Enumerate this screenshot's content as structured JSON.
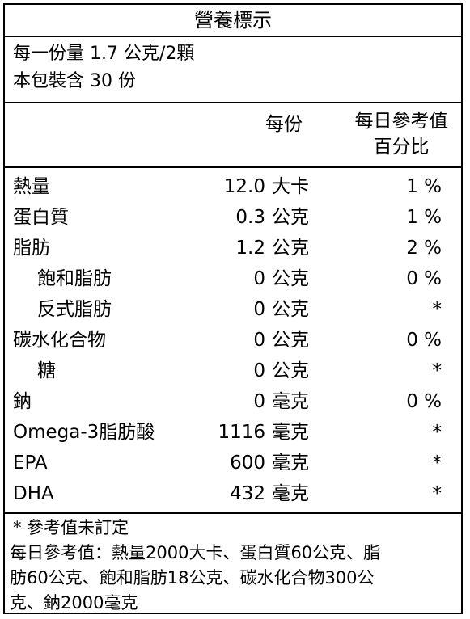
{
  "title": "營養標示",
  "serving": {
    "line1": "每一份量 1.7 公克/2顆",
    "line2": "本包裝含 30 份"
  },
  "header": {
    "per_serving": "每份",
    "daily_value_line1": "每日參考值",
    "daily_value_line2": "百分比"
  },
  "rows": [
    {
      "name": "熱量",
      "amount": "12.0",
      "unit": "大卡",
      "percent": "1 %",
      "sub": false
    },
    {
      "name": "蛋白質",
      "amount": "0.3",
      "unit": "公克",
      "percent": "1 %",
      "sub": false
    },
    {
      "name": "脂肪",
      "amount": "1.2",
      "unit": "公克",
      "percent": "2 %",
      "sub": false
    },
    {
      "name": "飽和脂肪",
      "amount": "0",
      "unit": "公克",
      "percent": "0 %",
      "sub": true
    },
    {
      "name": "反式脂肪",
      "amount": "0",
      "unit": "公克",
      "percent": "*",
      "sub": true
    },
    {
      "name": "碳水化合物",
      "amount": "0",
      "unit": "公克",
      "percent": "0 %",
      "sub": false
    },
    {
      "name": "糖",
      "amount": "0",
      "unit": "公克",
      "percent": "*",
      "sub": true
    },
    {
      "name": "鈉",
      "amount": "0",
      "unit": "毫克",
      "percent": "0 %",
      "sub": false
    },
    {
      "name": "Omega-3脂肪酸",
      "amount": "1116",
      "unit": "毫克",
      "percent": "*",
      "sub": false
    },
    {
      "name": "EPA",
      "amount": "600",
      "unit": "毫克",
      "percent": "*",
      "sub": false
    },
    {
      "name": "DHA",
      "amount": "432",
      "unit": "毫克",
      "percent": "*",
      "sub": false
    }
  ],
  "footer": {
    "note": "* 參考值未訂定",
    "line1": "每日參考值：熱量2000大卡、蛋白質60公克、脂",
    "line2": "肪60公克、飽和脂肪18公克、碳水化合物300公",
    "line3": "克、鈉2000毫克"
  }
}
